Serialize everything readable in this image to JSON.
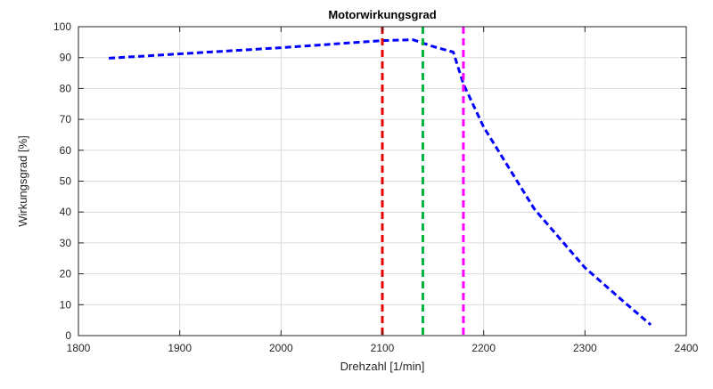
{
  "chart_data": {
    "type": "line",
    "title": "Motorwirkungsgrad",
    "xlabel": "Drehzahl [1/min]",
    "ylabel": "Wirkungsgrad [%]",
    "xlim": [
      1800,
      2400
    ],
    "ylim": [
      0,
      100
    ],
    "xticks": [
      1800,
      1900,
      2000,
      2100,
      2200,
      2300,
      2400
    ],
    "yticks": [
      0,
      10,
      20,
      30,
      40,
      50,
      60,
      70,
      80,
      90,
      100
    ],
    "grid": true,
    "series": [
      {
        "color": "#0000ff",
        "style": "dashed",
        "x": [
          1830,
          1900,
          2000,
          2100,
          2130,
          2140,
          2150,
          2170,
          2180,
          2200,
          2250,
          2300,
          2340,
          2365
        ],
        "y": [
          89.8,
          91.2,
          93.2,
          95.5,
          95.8,
          94.7,
          93.6,
          91.8,
          81.5,
          67.5,
          41.0,
          22.0,
          10.5,
          3.5
        ]
      }
    ],
    "vlines": [
      {
        "x": 2100,
        "color": "#e60000"
      },
      {
        "x": 2140,
        "color": "#00b33c"
      },
      {
        "x": 2180,
        "color": "#ff00ff"
      }
    ]
  }
}
